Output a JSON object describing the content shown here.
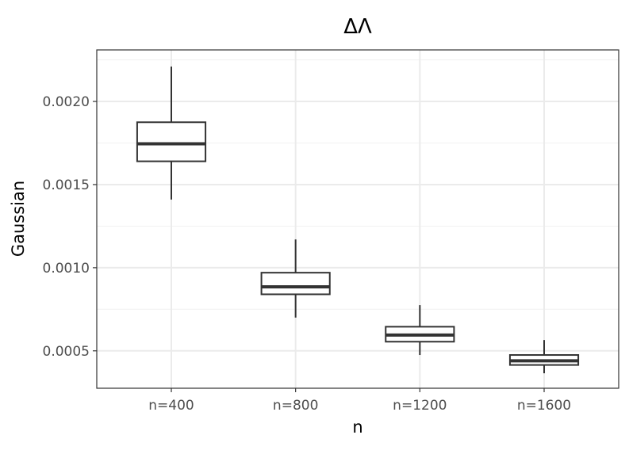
{
  "chart_data": {
    "type": "boxplot",
    "title": "ΔΛ",
    "xlabel": "n",
    "ylabel": "Gaussian",
    "categories": [
      "n=400",
      "n=800",
      "n=1200",
      "n=1600"
    ],
    "boxes": [
      {
        "category": "n=400",
        "min": 0.00141,
        "q1": 0.00164,
        "median": 0.001745,
        "q3": 0.001875,
        "max": 0.00221
      },
      {
        "category": "n=800",
        "min": 0.0007,
        "q1": 0.00084,
        "median": 0.000885,
        "q3": 0.00097,
        "max": 0.00117
      },
      {
        "category": "n=1200",
        "min": 0.000475,
        "q1": 0.000555,
        "median": 0.000595,
        "q3": 0.000645,
        "max": 0.000775
      },
      {
        "category": "n=1600",
        "min": 0.000365,
        "q1": 0.000415,
        "median": 0.00044,
        "q3": 0.000475,
        "max": 0.000565
      }
    ],
    "yticks": [
      0.0005,
      0.001,
      0.0015,
      0.002
    ],
    "ytick_labels": [
      "0.0005",
      "0.0010",
      "0.0015",
      "0.0020"
    ],
    "ylim": [
      0.000275,
      0.00231
    ],
    "grid": true,
    "colors": {
      "box_stroke": "#333333",
      "box_fill": "#ffffff",
      "grid_major": "#ebebeb",
      "grid_minor": "#f2f2f2",
      "panel_border": "#333333"
    }
  }
}
